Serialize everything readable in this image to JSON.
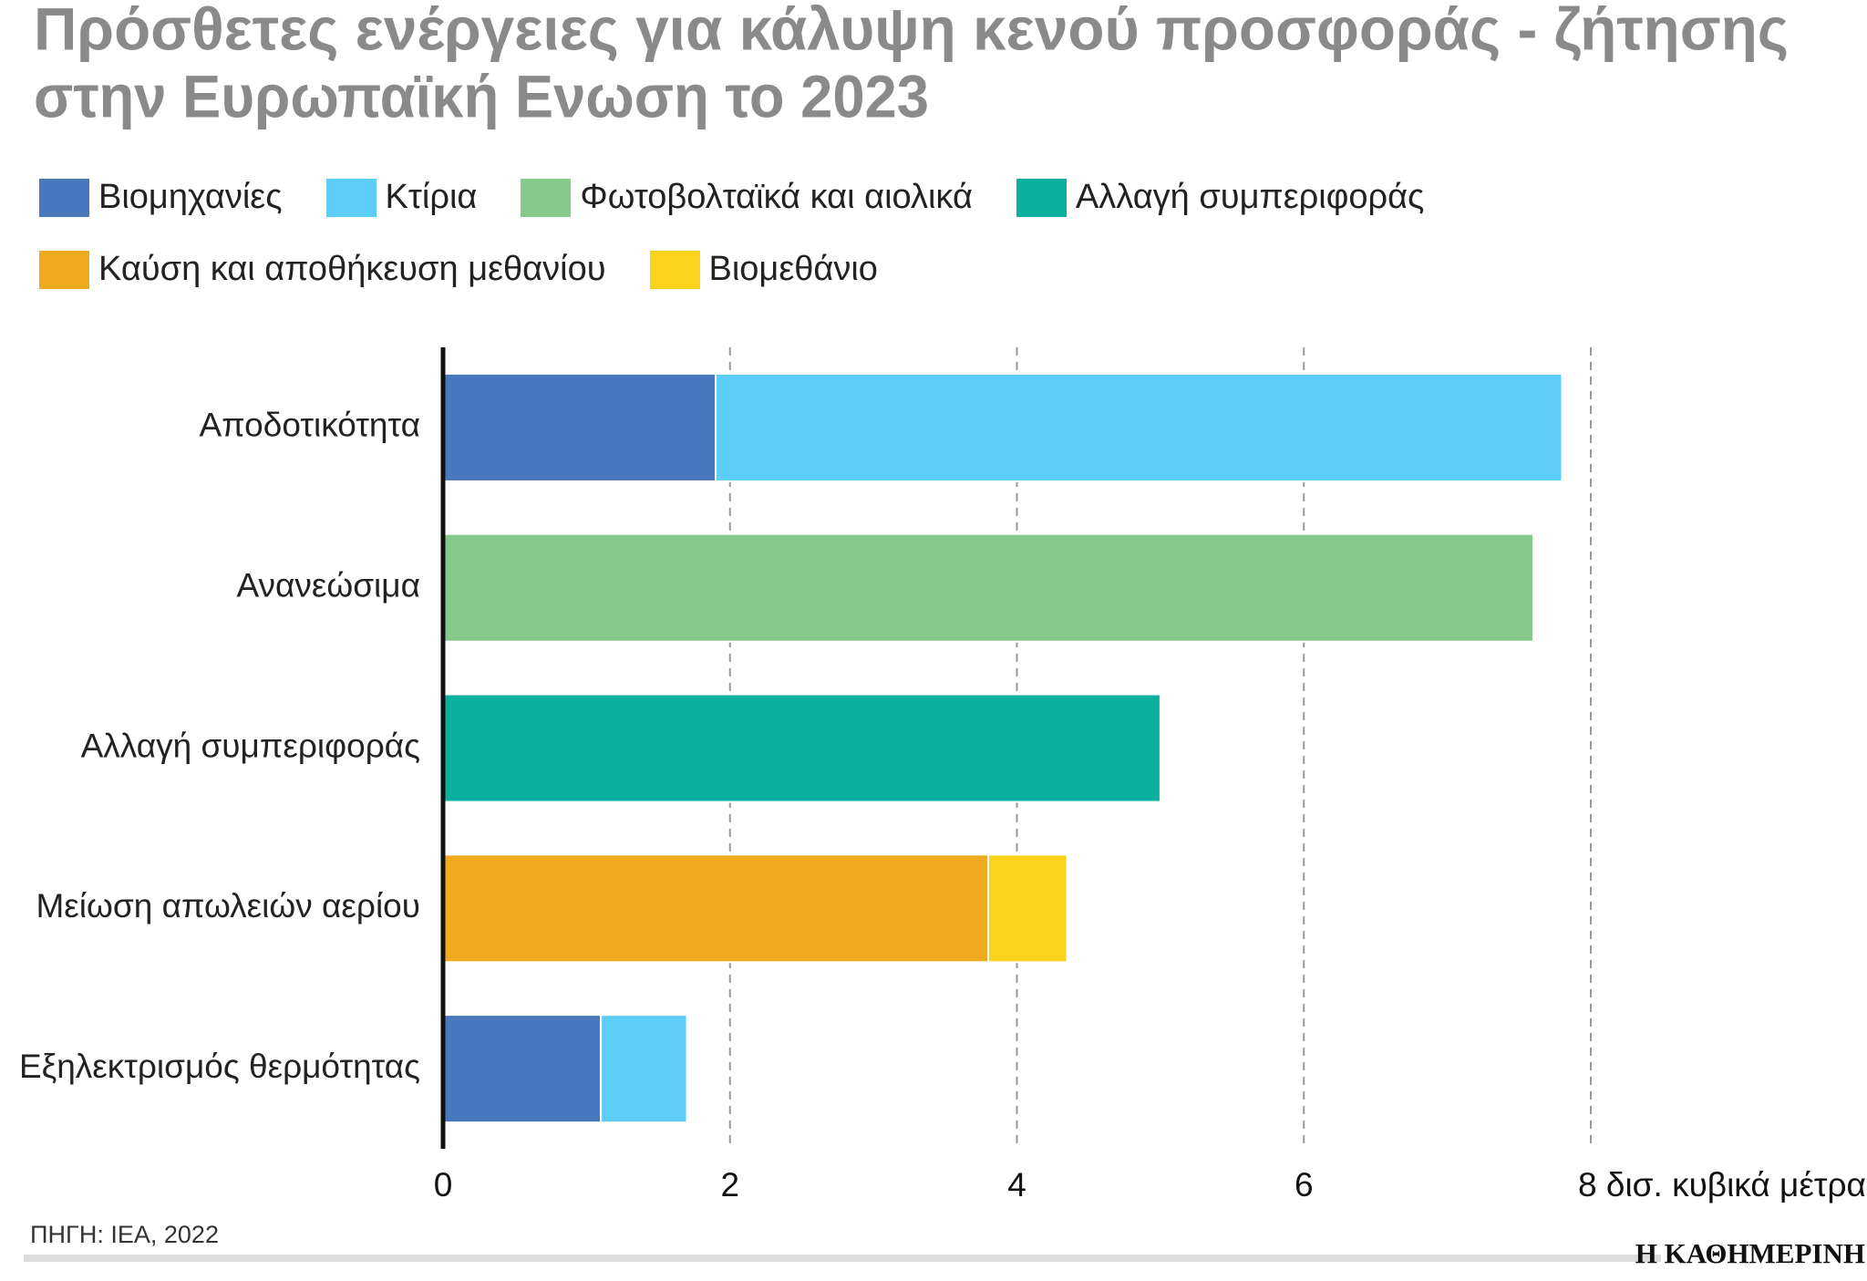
{
  "chart_data": {
    "type": "stacked-barh",
    "title": [
      "Πρόσθετες ενέργειες για κάλυψη κενού προσφοράς - ζήτησης",
      "στην Ευρωπαϊκή Ενωση το 2023"
    ],
    "categories": [
      "Αποδοτικότητα",
      "Ανανεώσιμα",
      "Αλλαγή συμπεριφοράς",
      "Μείωση απωλειών αερίου",
      "Εξηλεκτρισμός θερμότητας"
    ],
    "series": [
      {
        "name": "Βιομηχανίες",
        "color": "#4a78be",
        "values": [
          1.9,
          null,
          null,
          null,
          1.1
        ]
      },
      {
        "name": "Κτίρια",
        "color": "#5bcdf7",
        "values": [
          5.9,
          null,
          null,
          null,
          0.6
        ]
      },
      {
        "name": "Φωτοβολταϊκά και αιολικά",
        "color": "#86c98a",
        "values": [
          null,
          7.6,
          null,
          null,
          null
        ]
      },
      {
        "name": "Αλλαγή συμπεριφοράς",
        "color": "#0bb19e",
        "values": [
          null,
          null,
          5.0,
          null,
          null
        ]
      },
      {
        "name": "Καύση και αποθήκευση μεθανίου",
        "color": "#f0aa22",
        "values": [
          null,
          null,
          null,
          3.8,
          null
        ]
      },
      {
        "name": "Βιομεθάνιο",
        "color": "#fbd31f",
        "values": [
          null,
          null,
          null,
          0.55,
          null
        ]
      }
    ],
    "xlim": [
      0,
      8
    ],
    "xticks": [
      0,
      2,
      4,
      6,
      {
        "value": 8,
        "label": "8 δισ. κυβικά μέτρα"
      }
    ],
    "grid": true,
    "source": "ΠΗΓΗ: IEA, 2022",
    "publisher": "Η ΚΑΘΗΜΕΡΙΝΗ"
  }
}
